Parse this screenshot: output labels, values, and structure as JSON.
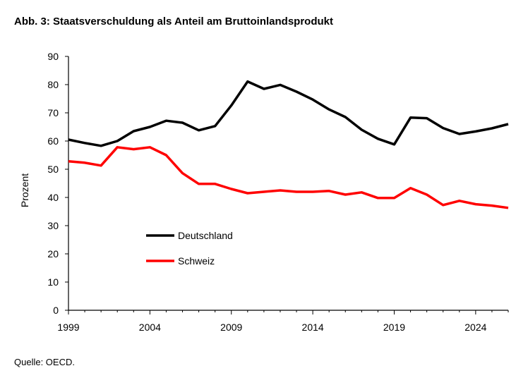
{
  "chart_data": {
    "type": "line",
    "title": "Abb. 3: Staatsverschuldung als Anteil am Bruttoinlandsprodukt",
    "source": "Quelle: OECD.",
    "xlabel": "",
    "ylabel": "Prozent",
    "xlim": [
      1999,
      2026
    ],
    "ylim": [
      0,
      90
    ],
    "yticks": [
      0,
      10,
      20,
      30,
      40,
      50,
      60,
      70,
      80,
      90
    ],
    "xticks": [
      1999,
      2004,
      2009,
      2014,
      2019,
      2024
    ],
    "grid": false,
    "legend": "center-left",
    "x": [
      1999,
      2000,
      2001,
      2002,
      2003,
      2004,
      2005,
      2006,
      2007,
      2008,
      2009,
      2010,
      2011,
      2012,
      2013,
      2014,
      2015,
      2016,
      2017,
      2018,
      2019,
      2020,
      2021,
      2022,
      2023,
      2024,
      2025,
      2026
    ],
    "series": [
      {
        "name": "Deutschland",
        "color": "#000000",
        "values": [
          60.5,
          59.3,
          58.3,
          60.0,
          63.5,
          65.0,
          67.2,
          66.5,
          63.8,
          65.3,
          72.6,
          81.1,
          78.5,
          79.9,
          77.5,
          74.7,
          71.2,
          68.5,
          64.0,
          60.8,
          58.8,
          68.3,
          68.1,
          64.6,
          62.5,
          63.4,
          64.5,
          66.0
        ]
      },
      {
        "name": "Schweiz",
        "color": "#ff0000",
        "values": [
          52.8,
          52.3,
          51.3,
          57.8,
          57.1,
          57.8,
          55.0,
          48.6,
          44.8,
          44.8,
          43.0,
          41.5,
          42.0,
          42.5,
          42.0,
          42.0,
          42.3,
          41.0,
          41.8,
          39.8,
          39.8,
          43.3,
          41.0,
          37.3,
          38.8,
          37.6,
          37.1,
          36.3
        ]
      }
    ]
  }
}
